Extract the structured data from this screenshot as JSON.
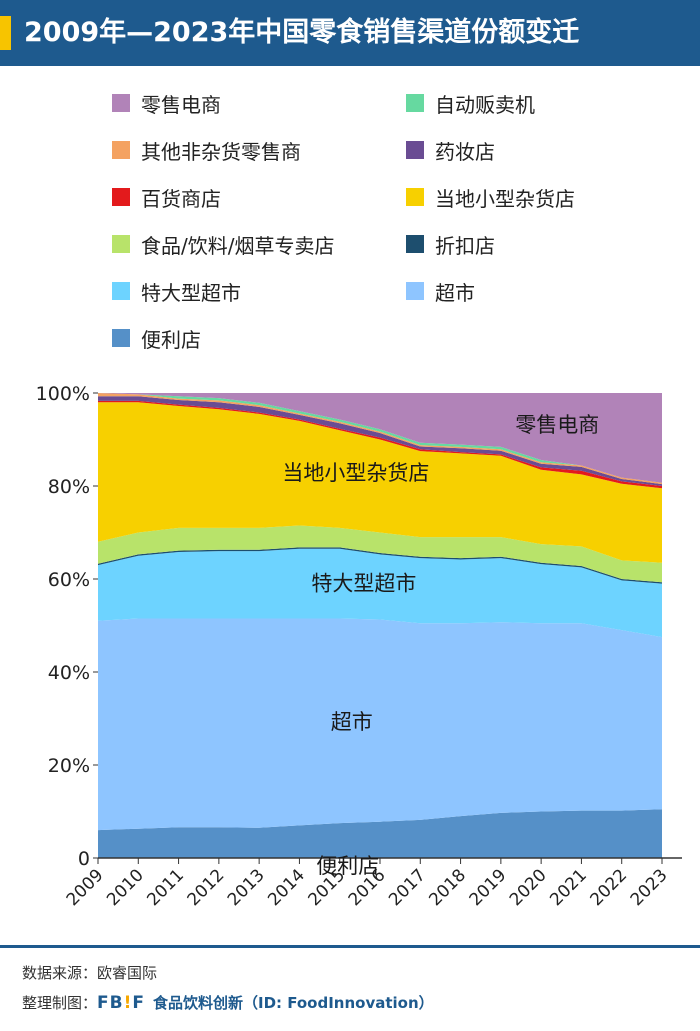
{
  "header": {
    "title": "2009年—2023年中国零食销售渠道份额变迁"
  },
  "legend": [
    {
      "label": "零售电商",
      "color": "#b183b8"
    },
    {
      "label": "自动贩卖机",
      "color": "#66d9a0"
    },
    {
      "label": "其他非杂货零售商",
      "color": "#f4a261"
    },
    {
      "label": "药妆店",
      "color": "#6a4c93"
    },
    {
      "label": "百货商店",
      "color": "#e31a1c"
    },
    {
      "label": "当地小型杂货店",
      "color": "#f7d000"
    },
    {
      "label": "食品/饮料/烟草专卖店",
      "color": "#b8e36a"
    },
    {
      "label": "折扣店",
      "color": "#1d4e6e"
    },
    {
      "label": "特大型超市",
      "color": "#6dd3ff"
    },
    {
      "label": "超市",
      "color": "#8ec5ff"
    },
    {
      "label": "便利店",
      "color": "#5590c8"
    }
  ],
  "chart_data": {
    "type": "area",
    "stacked": true,
    "x": [
      "2009",
      "2010",
      "2011",
      "2012",
      "2013",
      "2014",
      "2015",
      "2016",
      "2017",
      "2018",
      "2019",
      "2020",
      "2021",
      "2022",
      "2023"
    ],
    "ylim": [
      0,
      100
    ],
    "yticks": [
      "0",
      "20%",
      "40%",
      "60%",
      "80%",
      "100%"
    ],
    "series": [
      {
        "name": "便利店",
        "color": "#5590c8",
        "values": [
          6,
          6.3,
          6.6,
          6.6,
          6.5,
          7,
          7.5,
          7.8,
          8.2,
          9,
          9.7,
          10,
          10.2,
          10.2,
          10.5
        ]
      },
      {
        "name": "超市",
        "color": "#8ec5ff",
        "values": [
          45,
          45.2,
          44.9,
          44.9,
          45,
          44.5,
          44,
          43.5,
          42.3,
          41.5,
          41,
          40.5,
          40.3,
          38.8,
          37
        ]
      },
      {
        "name": "特大型超市",
        "color": "#6dd3ff",
        "values": [
          12,
          13.5,
          14.3,
          14.5,
          14.5,
          15,
          15,
          14,
          14,
          13.7,
          13.8,
          12.7,
          12,
          10.7,
          11.5
        ]
      },
      {
        "name": "折扣店",
        "color": "#1d4e6e",
        "values": [
          0.3,
          0.3,
          0.3,
          0.3,
          0.3,
          0.3,
          0.3,
          0.3,
          0.3,
          0.3,
          0.3,
          0.3,
          0.3,
          0.3,
          0.3
        ]
      },
      {
        "name": "食品/饮料/烟草专卖店",
        "color": "#b8e36a",
        "values": [
          4.7,
          4.7,
          4.9,
          4.7,
          4.7,
          4.7,
          4.2,
          4.4,
          4.2,
          4.5,
          4.2,
          4.0,
          4.2,
          4.0,
          4.2
        ]
      },
      {
        "name": "当地小型杂货店",
        "color": "#f7d000",
        "values": [
          30,
          28,
          26.2,
          25.5,
          24.5,
          22.5,
          21,
          20,
          18.5,
          18,
          17.5,
          16,
          15.5,
          16.5,
          16
        ]
      },
      {
        "name": "百货商店",
        "color": "#e31a1c",
        "values": [
          0.3,
          0.3,
          0.3,
          0.3,
          0.3,
          0.3,
          0.3,
          0.4,
          0.4,
          0.3,
          0.3,
          0.5,
          0.8,
          0.5,
          0.5
        ]
      },
      {
        "name": "药妆店",
        "color": "#6a4c93",
        "values": [
          1.0,
          1.0,
          1.0,
          1.2,
          1.2,
          1.0,
          1.2,
          1.0,
          0.6,
          0.8,
          0.8,
          0.8,
          0.8,
          0.5,
          0.4
        ]
      },
      {
        "name": "其他非杂货零售商",
        "color": "#f4a261",
        "values": [
          0.7,
          0.4,
          0.3,
          0.4,
          0.4,
          0.3,
          0.3,
          0.3,
          0.3,
          0.3,
          0.3,
          0.3,
          0.3,
          0.3,
          0.3
        ]
      },
      {
        "name": "自动贩卖机",
        "color": "#66d9a0",
        "values": [
          0,
          0,
          0.5,
          0.5,
          0.5,
          0.5,
          0.5,
          0.5,
          0.5,
          0.5,
          0.5,
          0.5,
          0,
          0,
          0
        ]
      },
      {
        "name": "零售电商",
        "color": "#b183b8",
        "values": [
          0,
          0.3,
          0.7,
          3.1,
          4.1,
          3.9,
          5.7,
          7.8,
          10.7,
          11.1,
          11.6,
          14.4,
          15.6,
          18.2,
          19.3
        ]
      }
    ],
    "annotations": [
      {
        "text": "零售电商",
        "series": 10
      },
      {
        "text": "当地小型杂货店",
        "series": 5
      },
      {
        "text": "特大型超市",
        "series": 2
      },
      {
        "text": "超市",
        "series": 1
      },
      {
        "text": "便利店",
        "series": 0
      }
    ]
  },
  "footer": {
    "source": "数据来源：欧睿国际",
    "made_prefix": "整理制图：",
    "logo_left": "FB",
    "logo_mid": "!",
    "logo_right": "F",
    "brand": "食品饮料创新（ID: FoodInnovation）"
  }
}
